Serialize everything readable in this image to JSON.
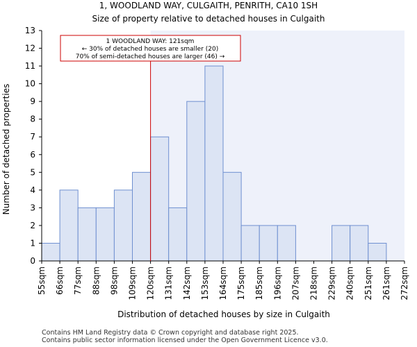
{
  "chart_data": {
    "type": "bar",
    "title_line1": "1, WOODLAND WAY, CULGAITH, PENRITH, CA10 1SH",
    "title_line2": "Size of property relative to detached houses in Culgaith",
    "xlabel": "Distribution of detached houses by size in Culgaith",
    "ylabel": "Number of detached properties",
    "bin_edges": [
      "55sqm",
      "66sqm",
      "77sqm",
      "88sqm",
      "98sqm",
      "109sqm",
      "120sqm",
      "131sqm",
      "142sqm",
      "153sqm",
      "164sqm",
      "175sqm",
      "185sqm",
      "196sqm",
      "207sqm",
      "218sqm",
      "229sqm",
      "240sqm",
      "251sqm",
      "261sqm",
      "272sqm"
    ],
    "values": [
      1,
      4,
      3,
      3,
      4,
      5,
      7,
      3,
      9,
      11,
      5,
      2,
      2,
      2,
      0,
      0,
      2,
      2,
      1,
      0
    ],
    "ylim": [
      0,
      13
    ],
    "yticks": [
      0,
      1,
      2,
      3,
      4,
      5,
      6,
      7,
      8,
      9,
      10,
      11,
      12,
      13
    ],
    "property_marker_bin_position": 6.0,
    "colors": {
      "bar_fill": "#dce4f4",
      "bar_edge": "#6e8fd0",
      "highlight_bg": "#eef1fa",
      "marker_line": "#cc0000",
      "annotation_border": "#cc0000"
    },
    "annotation": {
      "line1": "1 WOODLAND WAY: 121sqm",
      "line2": "← 30% of detached houses are smaller (20)",
      "line3": "70% of semi-detached houses are larger (46) →"
    }
  },
  "footer": {
    "line1": "Contains HM Land Registry data © Crown copyright and database right 2025.",
    "line2": "Contains public sector information licensed under the Open Government Licence v3.0."
  }
}
